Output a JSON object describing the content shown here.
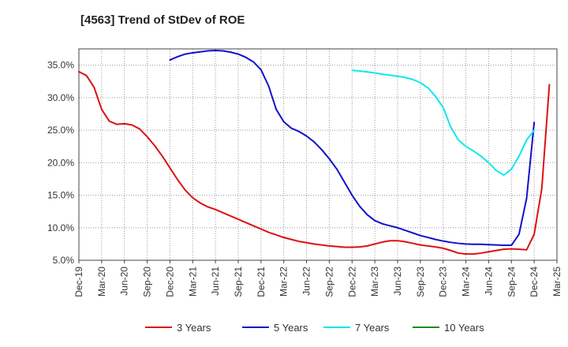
{
  "chart_data": {
    "type": "line",
    "title": "[4563]  Trend of StDev of ROE",
    "xlabel": "",
    "ylabel": "",
    "x_start": "Dec-19",
    "x_ticks": [
      "Dec-19",
      "Mar-20",
      "Jun-20",
      "Sep-20",
      "Dec-20",
      "Mar-21",
      "Jun-21",
      "Sep-21",
      "Dec-21",
      "Mar-22",
      "Jun-22",
      "Sep-22",
      "Dec-22",
      "Mar-23",
      "Jun-23",
      "Sep-23",
      "Dec-23",
      "Mar-24",
      "Jun-24",
      "Sep-24",
      "Dec-24",
      "Mar-25"
    ],
    "ylim": [
      5.0,
      37.5
    ],
    "y_ticks": [
      5.0,
      10.0,
      15.0,
      20.0,
      25.0,
      30.0,
      35.0
    ],
    "y_tick_labels": [
      "5.0%",
      "10.0%",
      "15.0%",
      "20.0%",
      "25.0%",
      "30.0%",
      "35.0%"
    ],
    "grid": true,
    "legend_position": "bottom",
    "series": [
      {
        "name": "3 Years",
        "color": "#dd1111",
        "points": [
          [
            0,
            34.0
          ],
          [
            1,
            33.4
          ],
          [
            2,
            31.6
          ],
          [
            3,
            28.2
          ],
          [
            4,
            26.4
          ],
          [
            5,
            25.9
          ],
          [
            6,
            26.0
          ],
          [
            7,
            25.8
          ],
          [
            8,
            25.2
          ],
          [
            9,
            24.0
          ],
          [
            10,
            22.6
          ],
          [
            11,
            21.0
          ],
          [
            12,
            19.2
          ],
          [
            13,
            17.4
          ],
          [
            14,
            15.8
          ],
          [
            15,
            14.6
          ],
          [
            16,
            13.8
          ],
          [
            17,
            13.2
          ],
          [
            18,
            12.8
          ],
          [
            19,
            12.3
          ],
          [
            20,
            11.8
          ],
          [
            21,
            11.3
          ],
          [
            22,
            10.8
          ],
          [
            23,
            10.3
          ],
          [
            24,
            9.8
          ],
          [
            25,
            9.3
          ],
          [
            26,
            8.9
          ],
          [
            27,
            8.5
          ],
          [
            28,
            8.2
          ],
          [
            29,
            7.9
          ],
          [
            30,
            7.7
          ],
          [
            31,
            7.5
          ],
          [
            32,
            7.35
          ],
          [
            33,
            7.2
          ],
          [
            34,
            7.1
          ],
          [
            35,
            7.0
          ],
          [
            36,
            7.0
          ],
          [
            37,
            7.05
          ],
          [
            38,
            7.2
          ],
          [
            39,
            7.5
          ],
          [
            40,
            7.8
          ],
          [
            41,
            8.0
          ],
          [
            42,
            8.0
          ],
          [
            43,
            7.85
          ],
          [
            44,
            7.6
          ],
          [
            45,
            7.35
          ],
          [
            46,
            7.2
          ],
          [
            47,
            7.05
          ],
          [
            48,
            6.85
          ],
          [
            49,
            6.5
          ],
          [
            50,
            6.1
          ],
          [
            51,
            5.95
          ],
          [
            52,
            5.95
          ],
          [
            53,
            6.1
          ],
          [
            54,
            6.3
          ],
          [
            55,
            6.5
          ],
          [
            56,
            6.7
          ],
          [
            57,
            6.75
          ],
          [
            58,
            6.7
          ],
          [
            59,
            6.6
          ],
          [
            60,
            9.0
          ],
          [
            61,
            16.0
          ],
          [
            62,
            32.0
          ]
        ]
      },
      {
        "name": "5 Years",
        "color": "#1111cc",
        "points": [
          [
            12,
            35.8
          ],
          [
            13,
            36.3
          ],
          [
            14,
            36.7
          ],
          [
            15,
            36.9
          ],
          [
            16,
            37.05
          ],
          [
            17,
            37.2
          ],
          [
            18,
            37.25
          ],
          [
            19,
            37.2
          ],
          [
            20,
            37.0
          ],
          [
            21,
            36.7
          ],
          [
            22,
            36.2
          ],
          [
            23,
            35.5
          ],
          [
            24,
            34.3
          ],
          [
            25,
            31.8
          ],
          [
            26,
            28.2
          ],
          [
            27,
            26.3
          ],
          [
            28,
            25.3
          ],
          [
            29,
            24.8
          ],
          [
            30,
            24.1
          ],
          [
            31,
            23.2
          ],
          [
            32,
            22.0
          ],
          [
            33,
            20.6
          ],
          [
            34,
            19.0
          ],
          [
            35,
            17.0
          ],
          [
            36,
            15.0
          ],
          [
            37,
            13.3
          ],
          [
            38,
            12.0
          ],
          [
            39,
            11.1
          ],
          [
            40,
            10.6
          ],
          [
            41,
            10.3
          ],
          [
            42,
            10.0
          ],
          [
            43,
            9.6
          ],
          [
            44,
            9.2
          ],
          [
            45,
            8.8
          ],
          [
            46,
            8.5
          ],
          [
            47,
            8.2
          ],
          [
            48,
            7.95
          ],
          [
            49,
            7.75
          ],
          [
            50,
            7.6
          ],
          [
            51,
            7.5
          ],
          [
            52,
            7.45
          ],
          [
            53,
            7.45
          ],
          [
            54,
            7.4
          ],
          [
            55,
            7.35
          ],
          [
            56,
            7.3
          ],
          [
            57,
            7.3
          ],
          [
            58,
            9.0
          ],
          [
            59,
            14.5
          ],
          [
            60,
            26.2
          ]
        ]
      },
      {
        "name": "7 Years",
        "color": "#11e6ee",
        "points": [
          [
            36,
            34.2
          ],
          [
            37,
            34.1
          ],
          [
            38,
            33.95
          ],
          [
            39,
            33.8
          ],
          [
            40,
            33.6
          ],
          [
            41,
            33.45
          ],
          [
            42,
            33.3
          ],
          [
            43,
            33.1
          ],
          [
            44,
            32.8
          ],
          [
            45,
            32.3
          ],
          [
            46,
            31.5
          ],
          [
            47,
            30.2
          ],
          [
            48,
            28.5
          ],
          [
            49,
            25.5
          ],
          [
            50,
            23.5
          ],
          [
            51,
            22.5
          ],
          [
            52,
            21.8
          ],
          [
            53,
            21.0
          ],
          [
            54,
            20.0
          ],
          [
            55,
            18.8
          ],
          [
            56,
            18.1
          ],
          [
            57,
            19.0
          ],
          [
            58,
            21.0
          ],
          [
            59,
            23.5
          ],
          [
            60,
            25.0
          ]
        ]
      },
      {
        "name": "10 Years",
        "color": "#228822",
        "points": []
      }
    ]
  }
}
